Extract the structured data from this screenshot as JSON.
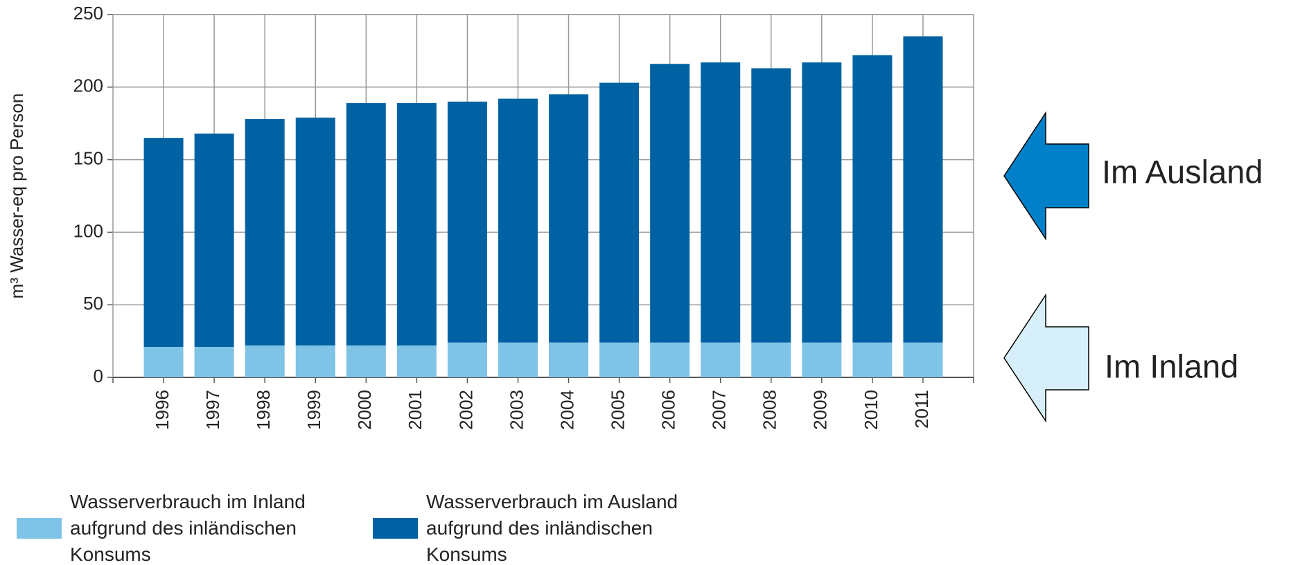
{
  "chart_data": {
    "type": "stacked-bar",
    "y_label": "m³ Wasser-eq pro Person",
    "categories": [
      "1996",
      "1997",
      "1998",
      "1999",
      "2000",
      "2001",
      "2002",
      "2003",
      "2004",
      "2005",
      "2006",
      "2007",
      "2008",
      "2009",
      "2010",
      "2011"
    ],
    "series": [
      {
        "name": "Wasserverbrauch im Inland aufgrund des inländischen Konsums",
        "color": "#7fc3e6",
        "values": [
          21,
          21,
          22,
          22,
          22,
          22,
          24,
          24,
          24,
          24,
          24,
          24,
          24,
          24,
          24,
          24
        ]
      },
      {
        "name": "Wasserverbrauch im Ausland aufgrund des inländischen Konsums",
        "color": "#0062a3",
        "values": [
          144,
          147,
          156,
          157,
          167,
          167,
          166,
          168,
          171,
          179,
          192,
          193,
          189,
          193,
          198,
          211
        ]
      }
    ],
    "ylim": [
      0,
      250
    ],
    "yticks": [
      0,
      50,
      100,
      150,
      200,
      250
    ],
    "grid": true,
    "annotations": [
      "Im Ausland",
      "Im Inland"
    ]
  }
}
